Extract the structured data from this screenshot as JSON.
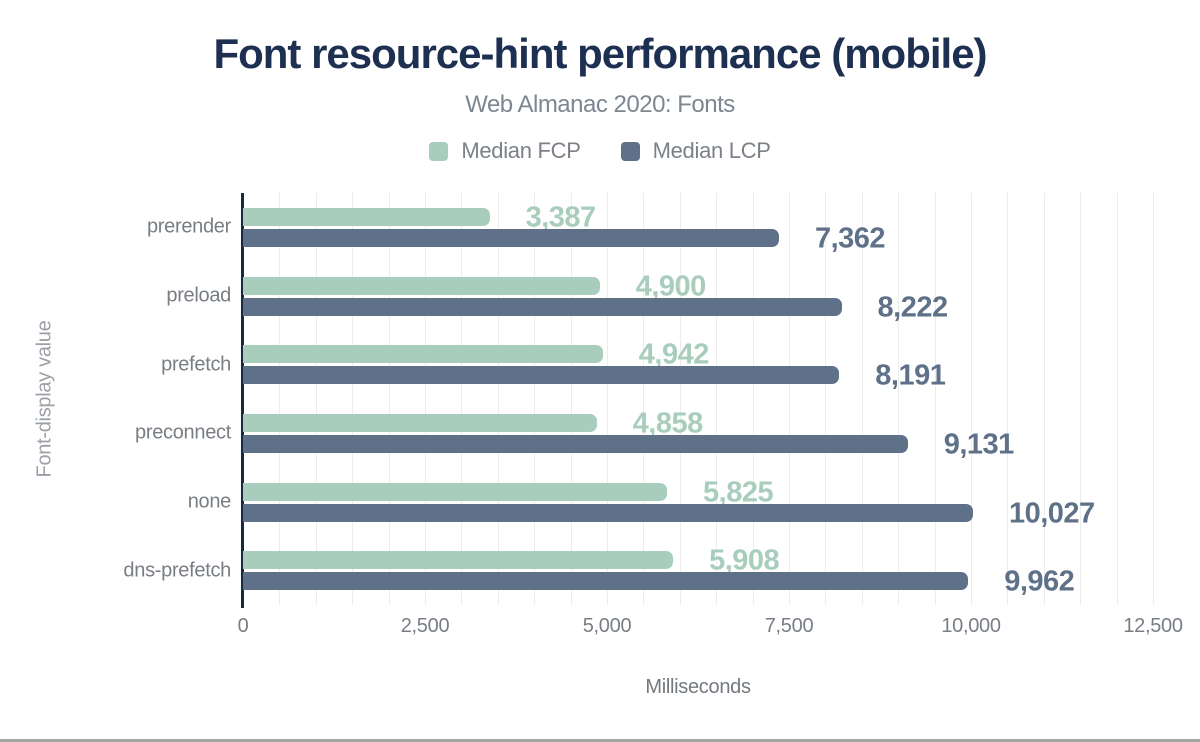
{
  "header": {
    "title": "Font resource-hint performance (mobile)",
    "subtitle": "Web Almanac 2020: Fonts"
  },
  "axis_titles": {
    "x": "Milliseconds",
    "y": "Font-display value"
  },
  "colors": {
    "title": "#1e3051",
    "fcp": "#a9cdbd",
    "lcp": "#5e7189",
    "axis_line": "#162a43",
    "gridline": "#ececec",
    "tick_text": "#797e84",
    "bottom_rule": "#a5a5a5"
  },
  "chart_data": {
    "type": "bar",
    "orientation": "horizontal",
    "title": "Font resource-hint performance (mobile)",
    "subtitle": "Web Almanac 2020: Fonts",
    "categories": [
      "prerender",
      "preload",
      "prefetch",
      "preconnect",
      "none",
      "dns-prefetch"
    ],
    "series": [
      {
        "name": "Median FCP",
        "color": "#a9cdbd",
        "values": [
          3387,
          4900,
          4942,
          4858,
          5825,
          5908
        ],
        "labels": [
          "3,387",
          "4,900",
          "4,942",
          "4,858",
          "5,825",
          "5,908"
        ]
      },
      {
        "name": "Median LCP",
        "color": "#5e7189",
        "values": [
          7362,
          8222,
          8191,
          9131,
          10027,
          9962
        ],
        "labels": [
          "7,362",
          "8,222",
          "8,191",
          "9,131",
          "10,027",
          "9,962"
        ]
      }
    ],
    "xlabel": "Milliseconds",
    "ylabel": "Font-display value",
    "xlim": [
      0,
      12500
    ],
    "xticks": [
      0,
      2500,
      5000,
      7500,
      10000,
      12500
    ],
    "xtick_labels": [
      "0",
      "2,500",
      "5,000",
      "7,500",
      "10,000",
      "12,500"
    ],
    "gridline_step": 500,
    "grid": true,
    "legend_position": "top"
  }
}
